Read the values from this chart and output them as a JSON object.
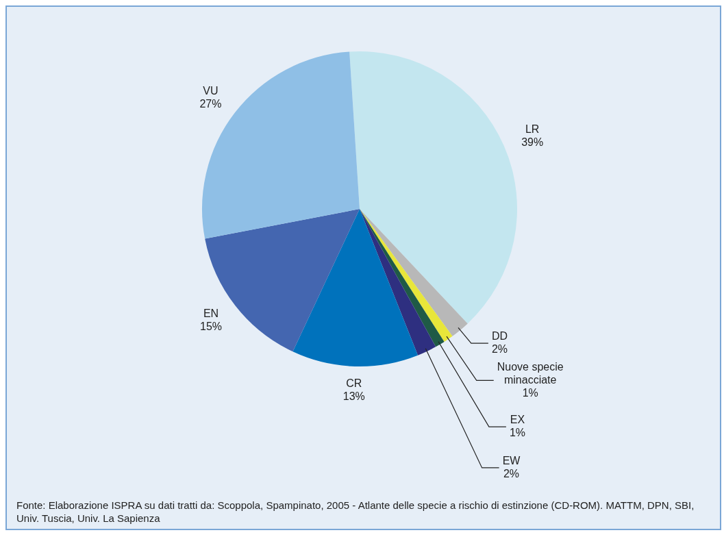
{
  "chart_data": {
    "type": "pie",
    "categories": [
      "LR",
      "DD",
      "Nuove specie minacciate",
      "EX",
      "EW",
      "CR",
      "EN",
      "VU"
    ],
    "values": [
      39,
      2,
      1,
      1,
      2,
      13,
      15,
      27
    ],
    "value_labels": [
      "39%",
      "2%",
      "1%",
      "1%",
      "2%",
      "13%",
      "15%",
      "27%"
    ],
    "colors": [
      "#c3e6ef",
      "#b8b8b8",
      "#e8e63a",
      "#1f5a46",
      "#2e2f80",
      "#0072bc",
      "#4466b0",
      "#8fbfe6"
    ],
    "annotations": [
      "Fonte: Elaborazione ISPRA su dati tratti da: Scoppola, Spampinato, 2005 - Atlante delle specie a rischio di estinzione (CD-ROM). MATTM, DPN, SBI, Univ. Tuscia, Univ. La Sapienza"
    ]
  }
}
